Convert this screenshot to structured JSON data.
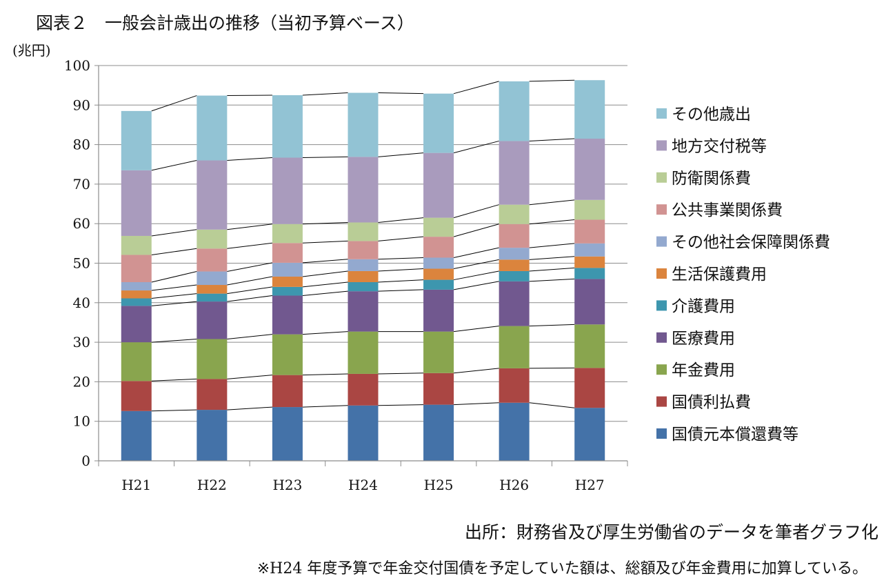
{
  "title": "図表２　一般会計歳出の推移（当初予算ベース）",
  "source": "出所：財務省及び厚生労働省のデータを筆者グラフ化",
  "footnote": "※H24 年度予算で年金交付国債を予定していた額は、総額及び年金費用に加算している。",
  "chart_data": {
    "type": "bar",
    "stacked": true,
    "series_lines": true,
    "ylabel": "(兆円)",
    "ylim": [
      0,
      100
    ],
    "yticks": [
      0,
      10,
      20,
      30,
      40,
      50,
      60,
      70,
      80,
      90,
      100
    ],
    "grid": true,
    "legend_position": "right",
    "categories": [
      "H21",
      "H22",
      "H23",
      "H24",
      "H25",
      "H26",
      "H27"
    ],
    "series": [
      {
        "name": "国債元本償還費等",
        "color": "#4472a8",
        "values": [
          12.6,
          12.9,
          13.6,
          14.0,
          14.2,
          14.7,
          13.4
        ]
      },
      {
        "name": "国債利払費",
        "color": "#aa4643",
        "values": [
          7.6,
          7.8,
          8.1,
          8.0,
          8.0,
          8.7,
          10.1
        ]
      },
      {
        "name": "年金費用",
        "color": "#89a54e",
        "values": [
          9.8,
          10.1,
          10.3,
          10.7,
          10.5,
          10.7,
          11.0
        ]
      },
      {
        "name": "医療費用",
        "color": "#71588f",
        "values": [
          9.2,
          9.5,
          9.8,
          10.2,
          10.6,
          11.3,
          11.5
        ]
      },
      {
        "name": "介護費用",
        "color": "#3d96ae",
        "values": [
          1.9,
          2.0,
          2.2,
          2.3,
          2.5,
          2.6,
          2.8
        ]
      },
      {
        "name": "生活保護費用",
        "color": "#db843d",
        "values": [
          2.0,
          2.2,
          2.6,
          2.8,
          2.8,
          2.9,
          2.9
        ]
      },
      {
        "name": "その他社会保障関係費",
        "color": "#93a9cf",
        "values": [
          2.1,
          3.4,
          3.5,
          3.0,
          2.8,
          3.0,
          3.3
        ]
      },
      {
        "name": "公共事業関係費",
        "color": "#d19392",
        "values": [
          6.9,
          5.8,
          5.0,
          4.6,
          5.3,
          6.0,
          6.0
        ]
      },
      {
        "name": "防衛関係費",
        "color": "#b9cd96",
        "values": [
          4.8,
          4.8,
          4.8,
          4.7,
          4.8,
          4.9,
          5.0
        ]
      },
      {
        "name": "地方交付税等",
        "color": "#a99bbd",
        "values": [
          16.6,
          17.5,
          16.8,
          16.6,
          16.4,
          16.1,
          15.5
        ]
      },
      {
        "name": "その他歳出",
        "color": "#92c3d4",
        "values": [
          15.0,
          16.4,
          15.8,
          16.2,
          15.0,
          15.1,
          14.8
        ]
      }
    ]
  }
}
